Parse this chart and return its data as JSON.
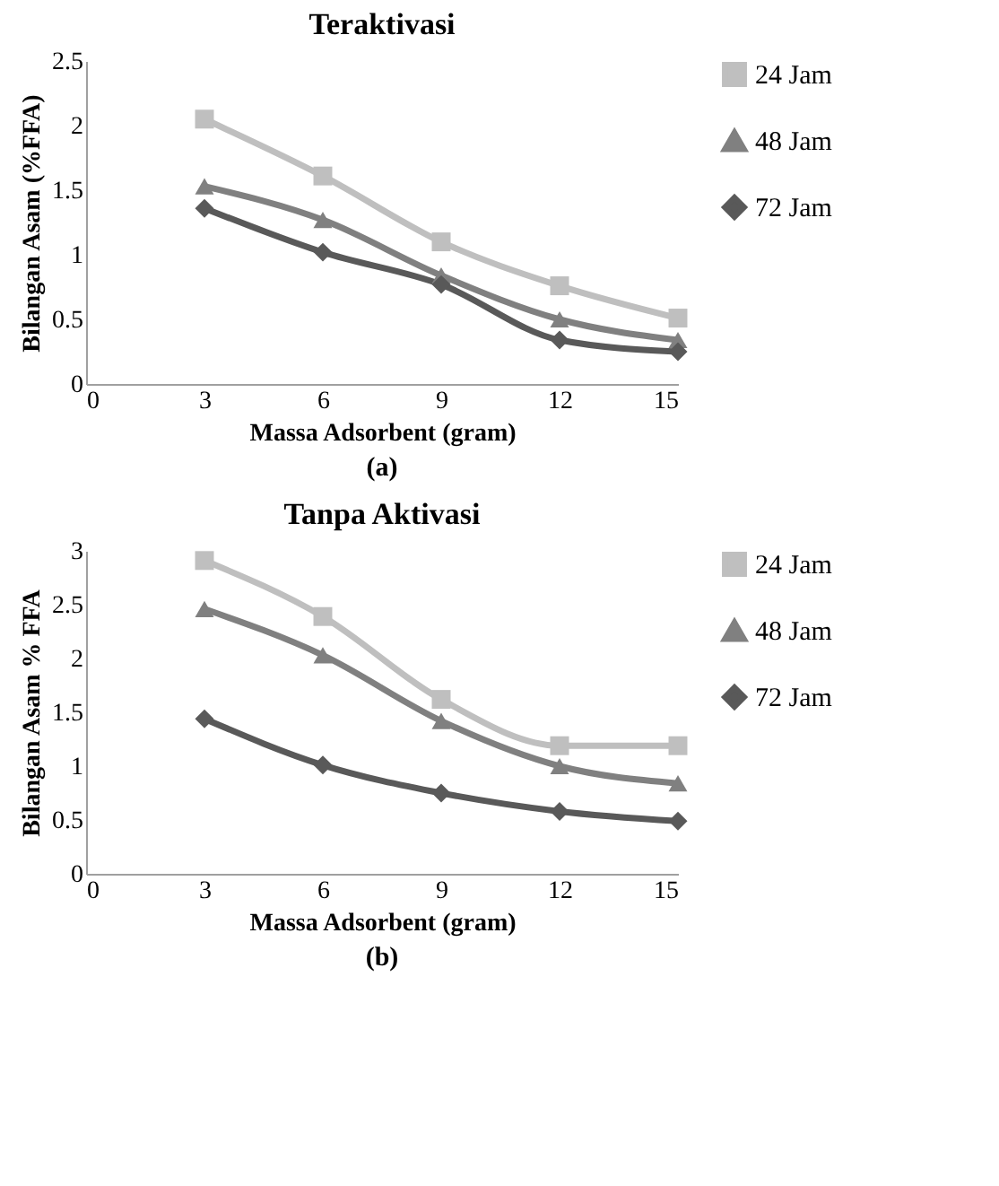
{
  "chart_data": [
    {
      "type": "line",
      "title": "Teraktivasi",
      "xlabel": "Massa Adsorbent (gram)",
      "ylabel": "Bilangan Asam (%FFA)",
      "x": [
        3,
        6,
        9,
        12,
        15
      ],
      "xlim": [
        0,
        15
      ],
      "xticks": [
        0,
        3,
        6,
        9,
        12,
        15
      ],
      "ylim": [
        0,
        2.5
      ],
      "yticks": [
        0,
        0.5,
        1,
        1.5,
        2,
        2.5
      ],
      "grid": false,
      "legend": "top right",
      "line_style": "solid",
      "annotations": [
        "(a)"
      ],
      "series": [
        {
          "name": "24 Jam",
          "color": "#bfbfbf",
          "marker": "square",
          "values": [
            2.05,
            1.61,
            1.1,
            0.76,
            0.51
          ]
        },
        {
          "name": "48 Jam",
          "color": "#808080",
          "marker": "triangle",
          "values": [
            1.53,
            1.27,
            0.84,
            0.5,
            0.34
          ]
        },
        {
          "name": "72 Jam",
          "color": "#595959",
          "marker": "diamond",
          "values": [
            1.36,
            1.02,
            0.77,
            0.34,
            0.25
          ]
        }
      ]
    },
    {
      "type": "line",
      "title": "Tanpa Aktivasi",
      "xlabel": "Massa Adsorbent (gram)",
      "ylabel": "Bilangan Asam % FFA",
      "x": [
        3,
        6,
        9,
        12,
        15
      ],
      "xlim": [
        0,
        15
      ],
      "xticks": [
        0,
        3,
        6,
        9,
        12,
        15
      ],
      "ylim": [
        0,
        3
      ],
      "yticks": [
        0,
        0.5,
        1,
        1.5,
        2,
        2.5,
        3
      ],
      "grid": false,
      "legend": "top right",
      "line_style": "solid",
      "annotations": [
        "(b)"
      ],
      "series": [
        {
          "name": "24 Jam",
          "color": "#bfbfbf",
          "marker": "square",
          "values": [
            2.91,
            2.39,
            1.62,
            1.19,
            1.19
          ]
        },
        {
          "name": "48 Jam",
          "color": "#808080",
          "marker": "triangle",
          "values": [
            2.46,
            2.03,
            1.42,
            1.0,
            0.84
          ]
        },
        {
          "name": "72 Jam",
          "color": "#595959",
          "marker": "diamond",
          "values": [
            1.44,
            1.01,
            0.75,
            0.58,
            0.49
          ]
        }
      ]
    }
  ]
}
